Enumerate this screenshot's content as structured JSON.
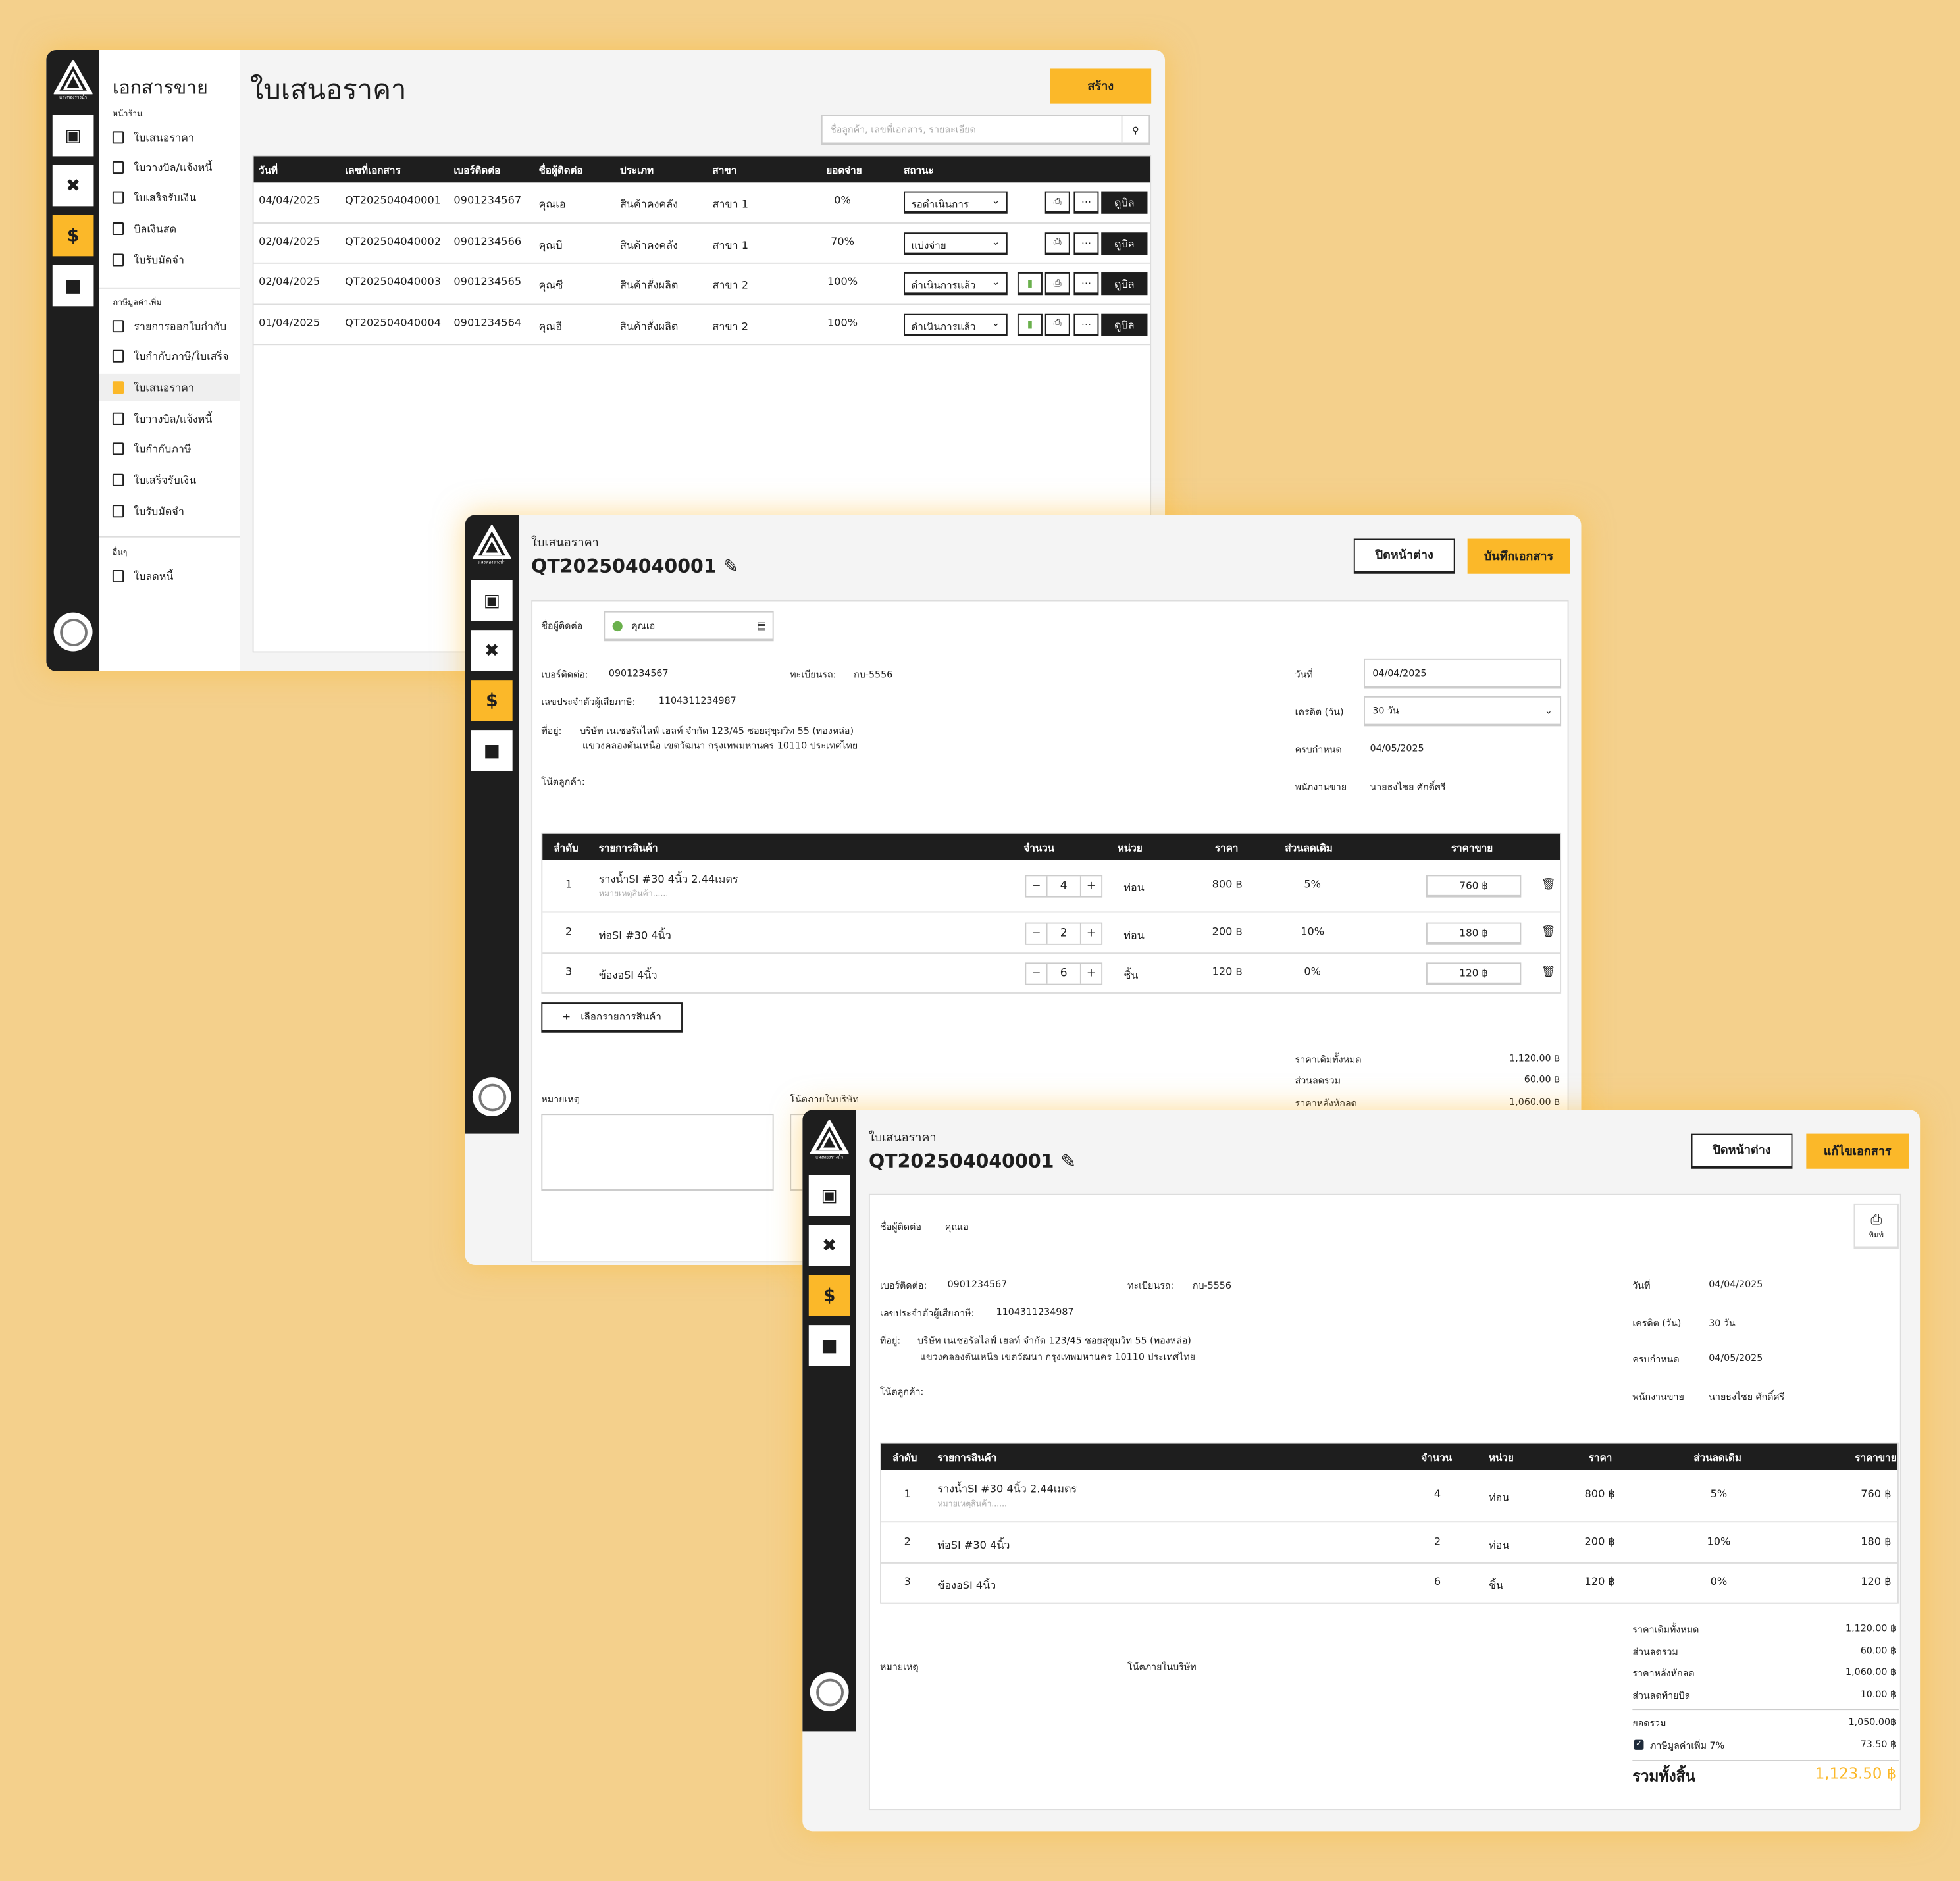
{
  "colors": {
    "accent": "#fbb829",
    "dark": "#1e1e1e",
    "status_ok": "#6ab04c"
  },
  "brand": {
    "logo_text": "แสงทองรางน้ำ"
  },
  "rail_icons": [
    "store-icon",
    "tools-icon",
    "document-dollar-icon",
    "contact-icon"
  ],
  "list_page": {
    "sidebar": {
      "title": "เอกสารขาย",
      "sections": [
        {
          "label": "หน้าร้าน",
          "items": [
            {
              "label": "ใบเสนอราคา",
              "icon": "document-dollar-icon"
            },
            {
              "label": "ใบวางบิล/แจ้งหนี้",
              "icon": "scroll-icon"
            },
            {
              "label": "ใบเสร็จรับเงิน",
              "icon": "receipt-icon"
            },
            {
              "label": "บิลเงินสด",
              "icon": "bill-icon"
            },
            {
              "label": "ใบรับมัดจำ",
              "icon": "coins-icon"
            }
          ]
        },
        {
          "label": "ภาษีมูลค่าเพิ่ม",
          "items": [
            {
              "label": "รายการออกใบกำกับ",
              "icon": "bill-icon"
            },
            {
              "label": "ใบกำกับภาษี/ใบเสร็จ",
              "icon": "file-icon"
            },
            {
              "label": "ใบเสนอราคา",
              "icon": "document-dollar-icon",
              "active": true
            },
            {
              "label": "ใบวางบิล/แจ้งหนี้",
              "icon": "scroll-icon"
            },
            {
              "label": "ใบกำกับภาษี",
              "icon": "file-icon"
            },
            {
              "label": "ใบเสร็จรับเงิน",
              "icon": "receipt-icon"
            },
            {
              "label": "ใบรับมัดจำ",
              "icon": "coins-icon"
            }
          ]
        },
        {
          "label": "อื่นๆ",
          "items": [
            {
              "label": "ใบลดหนี้",
              "icon": "trend-down-icon"
            }
          ]
        }
      ]
    },
    "title": "ใบเสนอราคา",
    "create_label": "สร้าง",
    "search_placeholder": "ชื่อลูกค้า, เลขที่เอกสาร, รายละเอียด",
    "columns": [
      "วันที่",
      "เลขที่เอกสาร",
      "เบอร์ติดต่อ",
      "ชื่อผู้ติดต่อ",
      "ประเภท",
      "สาขา",
      "ยอดจ่าย",
      "สถานะ"
    ],
    "view_label": "ดูบิล",
    "rows": [
      {
        "date": "04/04/2025",
        "doc": "QT202504040001",
        "phone": "0901234567",
        "name": "คุณเอ",
        "type": "สินค้าคงคลัง",
        "branch": "สาขา 1",
        "paid": "0%",
        "status": "รอดำเนินการ",
        "delivery": false
      },
      {
        "date": "02/04/2025",
        "doc": "QT202504040002",
        "phone": "0901234566",
        "name": "คุณบี",
        "type": "สินค้าคงคลัง",
        "branch": "สาขา 1",
        "paid": "70%",
        "status": "แบ่งจ่าย",
        "delivery": false
      },
      {
        "date": "02/04/2025",
        "doc": "QT202504040003",
        "phone": "0901234565",
        "name": "คุณซี",
        "type": "สินค้าสั่งผลิต",
        "branch": "สาขา 2",
        "paid": "100%",
        "status": "ดำเนินการแล้ว",
        "delivery": true
      },
      {
        "date": "01/04/2025",
        "doc": "QT202504040004",
        "phone": "0901234564",
        "name": "คุณอี",
        "type": "สินค้าสั่งผลิต",
        "branch": "สาขา 2",
        "paid": "100%",
        "status": "ดำเนินการแล้ว",
        "delivery": true
      }
    ]
  },
  "edit_page": {
    "breadcrumb": "ใบเสนอราคา",
    "doc_no": "QT202504040001",
    "close_label": "ปิดหน้าต่าง",
    "save_label": "บันทึกเอกสาร",
    "contact_label": "ชื่อผู้ติดต่อ",
    "contact_value": "คุณเอ",
    "phone_label": "เบอร์ติดต่อ:",
    "phone": "0901234567",
    "plate_label": "ทะเบียนรถ:",
    "plate": "กบ-5556",
    "tax_label": "เลขประจำตัวผู้เสียภาษี:",
    "tax_id": "1104311234987",
    "addr_label": "ที่อยู่:",
    "addr1": "บริษัท เนเชอรัลไลฟ์ เฮลท์ จำกัด 123/45 ซอยสุขุมวิท 55 (ทองหล่อ)",
    "addr2": "แขวงคลองตันเหนือ เขตวัฒนา กรุงเทพมหานคร 10110 ประเทศไทย",
    "note_label": "โน้ตลูกค้า:",
    "date_label": "วันที่",
    "date": "04/04/2025",
    "credit_label": "เครดิต (วัน)",
    "credit": "30 วัน",
    "due_label": "ครบกำหนด",
    "due": "04/05/2025",
    "sales_label": "พนักงานขาย",
    "sales": "นายธงไชย ศักดิ์ศรี",
    "columns": [
      "ลำดับ",
      "รายการสินค้า",
      "จำนวน",
      "หน่วย",
      "ราคา",
      "ส่วนลดเดิม",
      "ราคาขาย"
    ],
    "item_note_placeholder": "หมายเหตุสินค้า......",
    "add_item_label": "เลือกรายการสินค้า",
    "remarks_label": "หมายเหตุ",
    "company_note_label": "โน้ตภายในบริษัท",
    "totals": [
      {
        "label": "ราคาเดิมทั้งหมด",
        "value": "1,120.00 ฿"
      },
      {
        "label": "ส่วนลดรวม",
        "value": "60.00 ฿"
      },
      {
        "label": "ราคาหลังหักลด",
        "value": "1,060.00 ฿"
      }
    ]
  },
  "items": [
    {
      "no": "1",
      "name": "รางน้ำSI #30 4นิ้ว 2.44เมตร",
      "qty": "4",
      "unit": "ท่อน",
      "price": "800 ฿",
      "discount": "5%",
      "sale": "760 ฿",
      "note": true
    },
    {
      "no": "2",
      "name": "ท่อSI #30 4นิ้ว",
      "qty": "2",
      "unit": "ท่อน",
      "price": "200 ฿",
      "discount": "10%",
      "sale": "180 ฿"
    },
    {
      "no": "3",
      "name": "ข้องอSI 4นิ้ว",
      "qty": "6",
      "unit": "ชิ้น",
      "price": "120 ฿",
      "discount": "0%",
      "sale": "120 ฿"
    }
  ],
  "view_page": {
    "close_label": "ปิดหน้าต่าง",
    "edit_label": "แก้ไขเอกสาร",
    "print_label": "พิมพ์",
    "totals": [
      {
        "label": "ราคาเดิมทั้งหมด",
        "value": "1,120.00 ฿"
      },
      {
        "label": "ส่วนลดรวม",
        "value": "60.00 ฿"
      },
      {
        "label": "ราคาหลังหักลด",
        "value": "1,060.00 ฿"
      },
      {
        "label": "ส่วนลดท้ายบิล",
        "value": "10.00 ฿"
      }
    ],
    "subtotal_label": "ยอดรวม",
    "subtotal": "1,050.00฿",
    "vat_label": "ภาษีมูลค่าเพิ่ม 7%",
    "vat": "73.50 ฿",
    "vat_checked": true,
    "grand_label": "รวมทั้งสิ้น",
    "grand": "1,123.50 ฿"
  }
}
